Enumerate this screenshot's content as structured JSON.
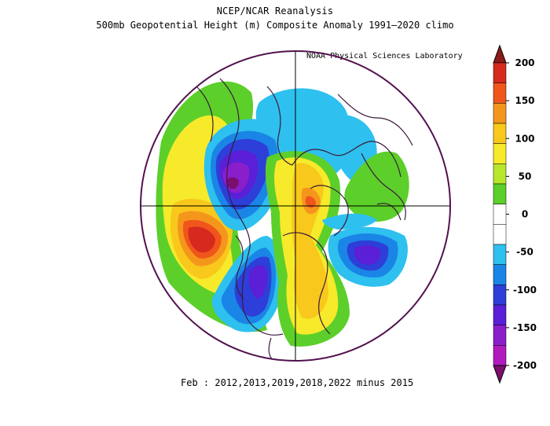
{
  "title": "NCEP/NCAR Reanalysis",
  "subtitle": "500mb Geopotential Height (m) Composite Anomaly 1991—2020 climo",
  "credit": "NOAA Physical Sciences Laboratory",
  "caption": "Feb : 2012,2013,2019,2018,2022 minus 2015",
  "colorbar": {
    "ticks": [
      "200",
      "150",
      "100",
      "50",
      "0",
      "-50",
      "-100",
      "-150",
      "-200"
    ],
    "colors": [
      "#8b1a1a",
      "#d62a1e",
      "#f0561c",
      "#f5961c",
      "#f8c81c",
      "#f6ea2a",
      "#b8e62c",
      "#5ccf2a",
      "#ffffff",
      "#ffffff",
      "#2ec0ee",
      "#1a85e6",
      "#2d3fd8",
      "#5a1fd6",
      "#8a1ecb",
      "#b01bbd",
      "#7a0f6e"
    ]
  },
  "colors": {
    "map_outline": "#52124f",
    "land_lines": "#3b1a3b"
  }
}
